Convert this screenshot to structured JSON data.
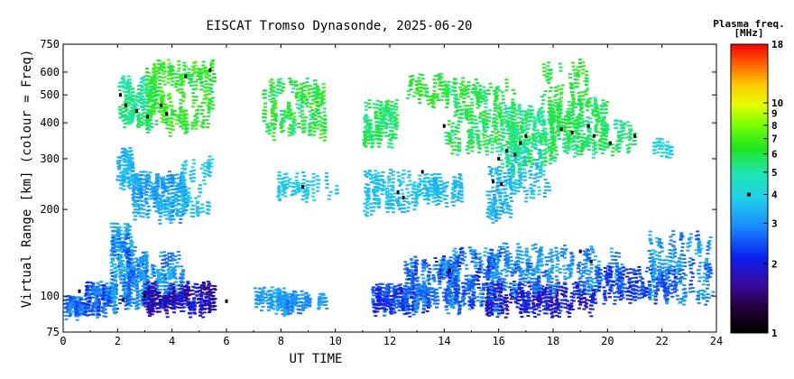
{
  "chart_data": {
    "type": "scatter",
    "title": "EISCAT Tromso Dynasonde, 2025-06-20",
    "xlabel": "UT TIME",
    "ylabel": "Virtual Range [km] (colour = Freq)",
    "xlim": [
      0,
      24
    ],
    "ylim": [
      75,
      750
    ],
    "yscale": "log",
    "x_ticks": [
      0,
      2,
      4,
      6,
      8,
      10,
      12,
      14,
      16,
      18,
      20,
      22,
      24
    ],
    "x_tick_labels": [
      "0",
      "2",
      "4",
      "6",
      "8",
      "10",
      "12",
      "14",
      "16",
      "18",
      "20",
      "22",
      "24"
    ],
    "y_ticks": [
      75,
      100,
      200,
      300,
      400,
      500,
      600,
      750
    ],
    "y_tick_labels": [
      "75",
      "100",
      "200",
      "300",
      "400",
      "500",
      "600",
      "750"
    ],
    "grid": false,
    "colorbar": {
      "title_line1": "Plasma freq.",
      "title_line2": "[MHz]",
      "scale": "log",
      "range": [
        1,
        18
      ],
      "ticks": [
        1,
        2,
        3,
        4,
        5,
        6,
        7,
        8,
        9,
        10,
        18
      ],
      "tick_labels": [
        "1",
        "2",
        "3",
        "4",
        "5",
        "6",
        "7",
        "8",
        "9",
        "10",
        "18"
      ]
    },
    "clusters": [
      {
        "x": [
          0.0,
          0.8
        ],
        "y": [
          88,
          98
        ],
        "f": [
          2.0,
          3.2
        ],
        "n": 60
      },
      {
        "x": [
          0.8,
          1.9
        ],
        "y": [
          88,
          110
        ],
        "f": [
          2.0,
          3.3
        ],
        "n": 90
      },
      {
        "x": [
          1.7,
          2.5
        ],
        "y": [
          95,
          175
        ],
        "f": [
          2.4,
          3.8
        ],
        "n": 110
      },
      {
        "x": [
          2.3,
          3.0
        ],
        "y": [
          95,
          145
        ],
        "f": [
          2.2,
          3.5
        ],
        "n": 70
      },
      {
        "x": [
          2.9,
          5.5
        ],
        "y": [
          90,
          110
        ],
        "f": [
          1.4,
          2.2
        ],
        "n": 170
      },
      {
        "x": [
          2.9,
          4.4
        ],
        "y": [
          108,
          140
        ],
        "f": [
          2.5,
          3.5
        ],
        "n": 60
      },
      {
        "x": [
          7.0,
          8.2
        ],
        "y": [
          92,
          105
        ],
        "f": [
          2.8,
          3.5
        ],
        "n": 50
      },
      {
        "x": [
          8.0,
          9.0
        ],
        "y": [
          90,
          102
        ],
        "f": [
          2.6,
          3.4
        ],
        "n": 60
      },
      {
        "x": [
          9.3,
          9.7
        ],
        "y": [
          94,
          100
        ],
        "f": [
          2.9,
          3.4
        ],
        "n": 12
      },
      {
        "x": [
          11.3,
          13.5
        ],
        "y": [
          90,
          108
        ],
        "f": [
          1.8,
          2.8
        ],
        "n": 130
      },
      {
        "x": [
          12.5,
          14.5
        ],
        "y": [
          95,
          135
        ],
        "f": [
          2.2,
          3.3
        ],
        "n": 120
      },
      {
        "x": [
          14.0,
          16.0
        ],
        "y": [
          92,
          145
        ],
        "f": [
          2.0,
          3.5
        ],
        "n": 140
      },
      {
        "x": [
          15.5,
          19.5
        ],
        "y": [
          90,
          110
        ],
        "f": [
          1.6,
          2.4
        ],
        "n": 160
      },
      {
        "x": [
          15.5,
          20.5
        ],
        "y": [
          105,
          150
        ],
        "f": [
          2.4,
          3.5
        ],
        "n": 170
      },
      {
        "x": [
          19.5,
          22.5
        ],
        "y": [
          100,
          125
        ],
        "f": [
          2.0,
          2.6
        ],
        "n": 100
      },
      {
        "x": [
          21.5,
          23.8
        ],
        "y": [
          95,
          165
        ],
        "f": [
          2.4,
          3.6
        ],
        "n": 110
      },
      {
        "x": [
          1.9,
          2.5
        ],
        "y": [
          245,
          320
        ],
        "f": [
          3.2,
          3.7
        ],
        "n": 50
      },
      {
        "x": [
          2.5,
          4.5
        ],
        "y": [
          190,
          265
        ],
        "f": [
          2.8,
          3.6
        ],
        "n": 150
      },
      {
        "x": [
          4.3,
          5.4
        ],
        "y": [
          195,
          300
        ],
        "f": [
          3.5,
          3.9
        ],
        "n": 40
      },
      {
        "x": [
          7.8,
          10.0
        ],
        "y": [
          225,
          265
        ],
        "f": [
          3.5,
          3.9
        ],
        "n": 40
      },
      {
        "x": [
          11.0,
          13.0
        ],
        "y": [
          200,
          270
        ],
        "f": [
          3.4,
          3.9
        ],
        "n": 80
      },
      {
        "x": [
          13.0,
          14.6
        ],
        "y": [
          215,
          260
        ],
        "f": [
          3.3,
          3.8
        ],
        "n": 60
      },
      {
        "x": [
          15.5,
          16.4
        ],
        "y": [
          190,
          280
        ],
        "f": [
          3.0,
          3.8
        ],
        "n": 50
      },
      {
        "x": [
          16.3,
          17.8
        ],
        "y": [
          220,
          330
        ],
        "f": [
          3.2,
          3.9
        ],
        "n": 50
      },
      {
        "x": [
          21.6,
          22.3
        ],
        "y": [
          320,
          345
        ],
        "f": [
          3.8,
          4.2
        ],
        "n": 15
      },
      {
        "x": [
          2.0,
          3.2
        ],
        "y": [
          400,
          570
        ],
        "f": [
          4.2,
          6.0
        ],
        "n": 90
      },
      {
        "x": [
          3.0,
          5.5
        ],
        "y": [
          380,
          650
        ],
        "f": [
          5.5,
          7.5
        ],
        "n": 170
      },
      {
        "x": [
          7.2,
          9.6
        ],
        "y": [
          370,
          560
        ],
        "f": [
          5.0,
          7.0
        ],
        "n": 120
      },
      {
        "x": [
          11.0,
          12.2
        ],
        "y": [
          350,
          470
        ],
        "f": [
          5.0,
          6.5
        ],
        "n": 80
      },
      {
        "x": [
          12.6,
          14.0
        ],
        "y": [
          480,
          580
        ],
        "f": [
          5.5,
          7.0
        ],
        "n": 40
      },
      {
        "x": [
          14.0,
          16.5
        ],
        "y": [
          330,
          560
        ],
        "f": [
          5.0,
          6.8
        ],
        "n": 150
      },
      {
        "x": [
          16.0,
          18.0
        ],
        "y": [
          280,
          460
        ],
        "f": [
          4.6,
          6.2
        ],
        "n": 150
      },
      {
        "x": [
          17.8,
          20.0
        ],
        "y": [
          320,
          480
        ],
        "f": [
          5.0,
          6.5
        ],
        "n": 150
      },
      {
        "x": [
          19.8,
          21.0
        ],
        "y": [
          320,
          400
        ],
        "f": [
          4.8,
          6.0
        ],
        "n": 30
      },
      {
        "x": [
          17.5,
          19.2
        ],
        "y": [
          480,
          650
        ],
        "f": [
          5.5,
          7.0
        ],
        "n": 40
      }
    ],
    "black_points": [
      {
        "x": 2.1,
        "y": 500
      },
      {
        "x": 2.3,
        "y": 460
      },
      {
        "x": 2.7,
        "y": 440
      },
      {
        "x": 3.1,
        "y": 420
      },
      {
        "x": 3.6,
        "y": 460
      },
      {
        "x": 3.8,
        "y": 430
      },
      {
        "x": 4.5,
        "y": 580
      },
      {
        "x": 5.4,
        "y": 610
      },
      {
        "x": 8.8,
        "y": 240
      },
      {
        "x": 12.3,
        "y": 230
      },
      {
        "x": 12.5,
        "y": 220
      },
      {
        "x": 13.2,
        "y": 270
      },
      {
        "x": 16.0,
        "y": 300
      },
      {
        "x": 16.3,
        "y": 320
      },
      {
        "x": 16.6,
        "y": 310
      },
      {
        "x": 16.8,
        "y": 340
      },
      {
        "x": 17.0,
        "y": 360
      },
      {
        "x": 18.3,
        "y": 380
      },
      {
        "x": 18.7,
        "y": 370
      },
      {
        "x": 19.3,
        "y": 390
      },
      {
        "x": 19.5,
        "y": 360
      },
      {
        "x": 20.1,
        "y": 340
      },
      {
        "x": 14.0,
        "y": 390
      },
      {
        "x": 21.0,
        "y": 360
      },
      {
        "x": 15.8,
        "y": 250
      },
      {
        "x": 16.1,
        "y": 245
      },
      {
        "x": 3.0,
        "y": 100
      },
      {
        "x": 2.2,
        "y": 97
      },
      {
        "x": 6.0,
        "y": 96
      },
      {
        "x": 19.4,
        "y": 132
      },
      {
        "x": 19.0,
        "y": 143
      },
      {
        "x": 14.2,
        "y": 123
      },
      {
        "x": 0.6,
        "y": 104
      }
    ],
    "colorbar_marker_value": 4
  }
}
